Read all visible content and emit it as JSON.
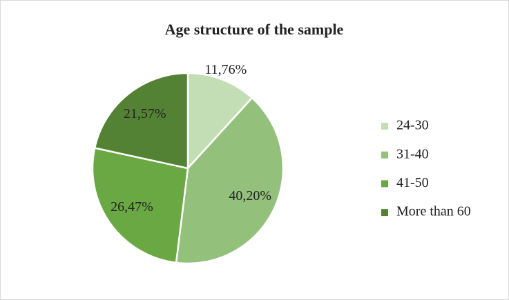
{
  "chart_data": {
    "type": "pie",
    "title": "Age structure of the sample",
    "categories": [
      "24-30",
      "31-40",
      "41-50",
      "More than 60"
    ],
    "values": [
      11.76,
      40.2,
      26.47,
      21.57
    ],
    "value_labels": [
      "11,76%",
      "40,20%",
      "26,47%",
      "21,57%"
    ],
    "colors": [
      "#c3deb4",
      "#93c07a",
      "#6aa843",
      "#548235"
    ],
    "legend": "right"
  }
}
